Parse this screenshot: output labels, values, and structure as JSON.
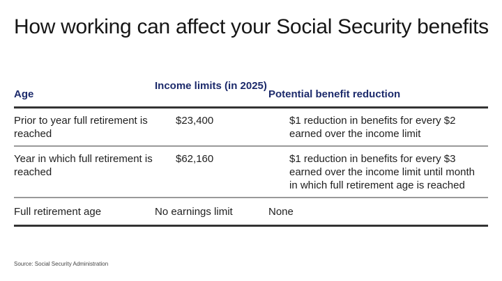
{
  "title": "How working can affect your Social Security benefits",
  "table": {
    "headers": [
      "Age",
      "Income limits (in 2025)",
      "Potential benefit reduction"
    ],
    "rows": [
      [
        "Prior to year full retirement is reached",
        "$23,400",
        "$1 reduction in benefits for every $2 earned over the income limit"
      ],
      [
        "Year in which full retirement is reached",
        "$62,160",
        "$1 reduction in benefits for every $3 earned over the income limit until month in which full retirement age is reached"
      ],
      [
        "Full retirement age",
        "No earnings limit",
        "None"
      ]
    ]
  },
  "source": "Source: Social Security Administration",
  "colors": {
    "header_text": "#1c2a6b"
  }
}
